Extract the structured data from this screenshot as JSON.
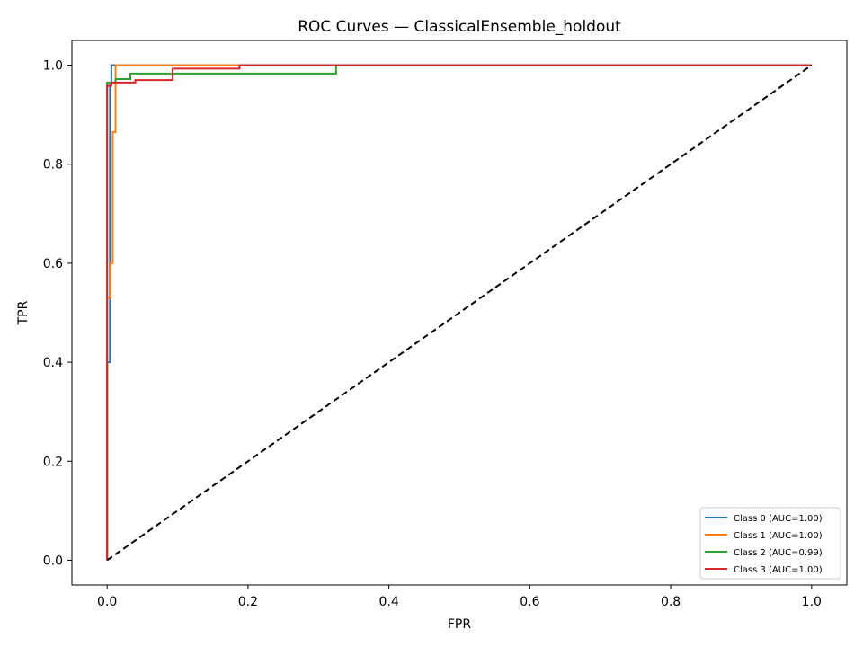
{
  "chart_data": {
    "type": "line",
    "title": "ROC Curves — ClassicalEnsemble_holdout",
    "xlabel": "FPR",
    "ylabel": "TPR",
    "xlim": [
      -0.05,
      1.05
    ],
    "ylim": [
      -0.05,
      1.05
    ],
    "xticks": [
      0.0,
      0.2,
      0.4,
      0.6,
      0.8,
      1.0
    ],
    "yticks": [
      0.0,
      0.2,
      0.4,
      0.6,
      0.8,
      1.0
    ],
    "xtick_labels": [
      "0.0",
      "0.2",
      "0.4",
      "0.6",
      "0.8",
      "1.0"
    ],
    "ytick_labels": [
      "0.0",
      "0.2",
      "0.4",
      "0.6",
      "0.8",
      "1.0"
    ],
    "grid": false,
    "legend_position": "lower-right",
    "series": [
      {
        "name": "Class 0 (AUC=1.00)",
        "color": "#1f77b4",
        "points": [
          [
            0.0,
            0.0
          ],
          [
            0.0,
            0.4
          ],
          [
            0.004,
            0.4
          ],
          [
            0.004,
            0.53
          ],
          [
            0.004,
            0.6
          ],
          [
            0.004,
            0.96
          ],
          [
            0.006,
            0.96
          ],
          [
            0.006,
            1.0
          ],
          [
            1.0,
            1.0
          ]
        ]
      },
      {
        "name": "Class 1 (AUC=1.00)",
        "color": "#ff7f0e",
        "points": [
          [
            0.0,
            0.0
          ],
          [
            0.0,
            0.53
          ],
          [
            0.005,
            0.53
          ],
          [
            0.005,
            0.6
          ],
          [
            0.008,
            0.6
          ],
          [
            0.008,
            0.865
          ],
          [
            0.012,
            0.865
          ],
          [
            0.012,
            1.0
          ],
          [
            1.0,
            1.0
          ]
        ]
      },
      {
        "name": "Class 2 (AUC=0.99)",
        "color": "#2ca02c",
        "points": [
          [
            0.0,
            0.0
          ],
          [
            0.0,
            0.965
          ],
          [
            0.012,
            0.965
          ],
          [
            0.012,
            0.972
          ],
          [
            0.033,
            0.972
          ],
          [
            0.033,
            0.983
          ],
          [
            0.325,
            0.983
          ],
          [
            0.325,
            1.0
          ],
          [
            1.0,
            1.0
          ]
        ]
      },
      {
        "name": "Class 3 (AUC=1.00)",
        "color": "#d62728",
        "points": [
          [
            0.0,
            0.0
          ],
          [
            0.0,
            0.958
          ],
          [
            0.006,
            0.958
          ],
          [
            0.006,
            0.965
          ],
          [
            0.04,
            0.965
          ],
          [
            0.04,
            0.97
          ],
          [
            0.093,
            0.97
          ],
          [
            0.093,
            0.993
          ],
          [
            0.188,
            0.993
          ],
          [
            0.188,
            1.0
          ],
          [
            1.0,
            1.0
          ]
        ]
      }
    ],
    "reference_line": {
      "style": "dashed",
      "color": "#000000",
      "points": [
        [
          0.0,
          0.0
        ],
        [
          1.0,
          1.0
        ]
      ]
    }
  }
}
